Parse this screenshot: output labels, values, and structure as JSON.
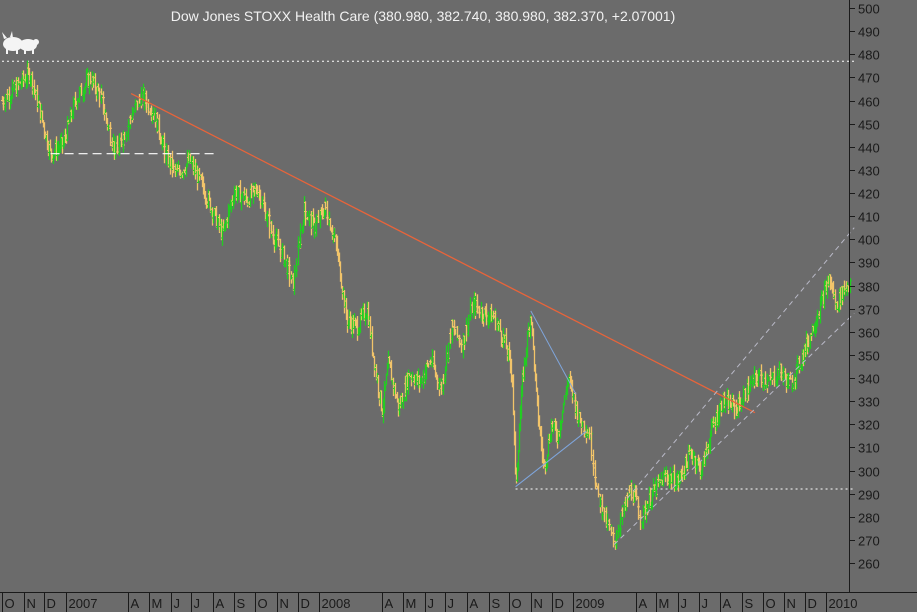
{
  "colors": {
    "background": "#6b6b6b",
    "up_bar": "#22cc22",
    "down_bar": "#f2c46a",
    "trendline": "#e8643a",
    "channel": "#b9b9c7",
    "triangle": "#7fa6dd",
    "reference": "#ffffff",
    "axis_text": "#1a1a1a",
    "title_text": "#f2f2f2"
  },
  "icon": "bull-and-bear-logo-icon",
  "chart_data": {
    "type": "ohlc",
    "title": "Dow Jones STOXX Health Care (380.980, 382.740, 380.980, 382.370, +2.07001)",
    "ylim": [
      255,
      503
    ],
    "y_ticks": [
      260,
      270,
      280,
      290,
      300,
      310,
      320,
      330,
      340,
      350,
      360,
      370,
      380,
      390,
      400,
      410,
      420,
      430,
      440,
      450,
      460,
      470,
      480,
      490,
      500
    ],
    "x_axis": {
      "start": "2006-10",
      "end": "2010-02",
      "ticks": [
        {
          "label": "O",
          "date": "2006-10"
        },
        {
          "label": "N",
          "date": "2006-11"
        },
        {
          "label": "D",
          "date": "2006-12"
        },
        {
          "label": "2007",
          "date": "2007-01"
        },
        {
          "label": "A",
          "date": "2007-04"
        },
        {
          "label": "M",
          "date": "2007-05"
        },
        {
          "label": "J",
          "date": "2007-06"
        },
        {
          "label": "J",
          "date": "2007-07"
        },
        {
          "label": "A",
          "date": "2007-08"
        },
        {
          "label": "S",
          "date": "2007-09"
        },
        {
          "label": "O",
          "date": "2007-10"
        },
        {
          "label": "N",
          "date": "2007-11"
        },
        {
          "label": "D",
          "date": "2007-12"
        },
        {
          "label": "2008",
          "date": "2008-01"
        },
        {
          "label": "A",
          "date": "2008-04"
        },
        {
          "label": "M",
          "date": "2008-05"
        },
        {
          "label": "J",
          "date": "2008-06"
        },
        {
          "label": "J",
          "date": "2008-07"
        },
        {
          "label": "A",
          "date": "2008-08"
        },
        {
          "label": "S",
          "date": "2008-09"
        },
        {
          "label": "O",
          "date": "2008-10"
        },
        {
          "label": "N",
          "date": "2008-11"
        },
        {
          "label": "D",
          "date": "2008-12"
        },
        {
          "label": "2009",
          "date": "2009-01"
        },
        {
          "label": "A",
          "date": "2009-04"
        },
        {
          "label": "M",
          "date": "2009-05"
        },
        {
          "label": "J",
          "date": "2009-06"
        },
        {
          "label": "J",
          "date": "2009-07"
        },
        {
          "label": "A",
          "date": "2009-08"
        },
        {
          "label": "S",
          "date": "2009-09"
        },
        {
          "label": "O",
          "date": "2009-10"
        },
        {
          "label": "N",
          "date": "2009-11"
        },
        {
          "label": "D",
          "date": "2009-12"
        },
        {
          "label": "2010",
          "date": "2010-01"
        }
      ]
    },
    "close_path": [
      [
        "2006-10-01",
        460
      ],
      [
        "2006-10-20",
        465
      ],
      [
        "2006-11-10",
        472
      ],
      [
        "2006-11-25",
        455
      ],
      [
        "2006-12-10",
        437
      ],
      [
        "2006-12-28",
        441
      ],
      [
        "2007-01-15",
        460
      ],
      [
        "2007-02-05",
        470
      ],
      [
        "2007-02-20",
        462
      ],
      [
        "2007-03-05",
        447
      ],
      [
        "2007-03-15",
        437
      ],
      [
        "2007-04-05",
        453
      ],
      [
        "2007-04-20",
        462
      ],
      [
        "2007-05-08",
        455
      ],
      [
        "2007-05-25",
        436
      ],
      [
        "2007-06-10",
        428
      ],
      [
        "2007-06-28",
        434
      ],
      [
        "2007-07-15",
        424
      ],
      [
        "2007-08-01",
        412
      ],
      [
        "2007-08-15",
        402
      ],
      [
        "2007-09-01",
        421
      ],
      [
        "2007-09-20",
        417
      ],
      [
        "2007-10-05",
        422
      ],
      [
        "2007-10-25",
        403
      ],
      [
        "2007-11-10",
        393
      ],
      [
        "2007-11-25",
        380
      ],
      [
        "2007-12-10",
        413
      ],
      [
        "2007-12-25",
        405
      ],
      [
        "2008-01-10",
        414
      ],
      [
        "2008-01-25",
        398
      ],
      [
        "2008-02-10",
        365
      ],
      [
        "2008-02-25",
        362
      ],
      [
        "2008-03-10",
        370
      ],
      [
        "2008-03-20",
        348
      ],
      [
        "2008-04-01",
        326
      ],
      [
        "2008-04-10",
        346
      ],
      [
        "2008-04-25",
        327
      ],
      [
        "2008-05-10",
        342
      ],
      [
        "2008-05-25",
        338
      ],
      [
        "2008-06-10",
        348
      ],
      [
        "2008-06-25",
        335
      ],
      [
        "2008-07-10",
        362
      ],
      [
        "2008-07-25",
        355
      ],
      [
        "2008-08-10",
        372
      ],
      [
        "2008-08-25",
        368
      ],
      [
        "2008-09-10",
        366
      ],
      [
        "2008-09-25",
        355
      ],
      [
        "2008-10-05",
        342
      ],
      [
        "2008-10-10",
        293
      ],
      [
        "2008-10-20",
        340
      ],
      [
        "2008-11-01",
        369
      ],
      [
        "2008-11-10",
        328
      ],
      [
        "2008-11-20",
        301
      ],
      [
        "2008-12-01",
        320
      ],
      [
        "2008-12-10",
        315
      ],
      [
        "2008-12-25",
        340
      ],
      [
        "2009-01-10",
        322
      ],
      [
        "2009-01-25",
        316
      ],
      [
        "2009-02-05",
        290
      ],
      [
        "2009-02-20",
        276
      ],
      [
        "2009-03-01",
        269
      ],
      [
        "2009-03-12",
        280
      ],
      [
        "2009-03-25",
        292
      ],
      [
        "2009-04-10",
        280
      ],
      [
        "2009-04-25",
        290
      ],
      [
        "2009-05-15",
        298
      ],
      [
        "2009-06-01",
        295
      ],
      [
        "2009-06-20",
        308
      ],
      [
        "2009-07-05",
        300
      ],
      [
        "2009-07-20",
        318
      ],
      [
        "2009-08-05",
        330
      ],
      [
        "2009-08-25",
        327
      ],
      [
        "2009-09-10",
        335
      ],
      [
        "2009-09-25",
        341
      ],
      [
        "2009-10-10",
        338
      ],
      [
        "2009-10-25",
        343
      ],
      [
        "2009-11-10",
        337
      ],
      [
        "2009-11-25",
        348
      ],
      [
        "2009-12-10",
        360
      ],
      [
        "2009-12-25",
        373
      ],
      [
        "2010-01-05",
        383
      ],
      [
        "2010-01-15",
        371
      ],
      [
        "2010-01-25",
        378
      ],
      [
        "2010-02-05",
        382
      ]
    ],
    "lines": [
      {
        "name": "resistance-trendline",
        "kind": "trend",
        "from": [
          "2007-04-05",
          463
        ],
        "to": [
          "2009-09-20",
          325
        ]
      },
      {
        "name": "channel-upper",
        "kind": "channel",
        "from": [
          "2009-03-20",
          288
        ],
        "to": [
          "2010-02-10",
          405
        ]
      },
      {
        "name": "channel-lower",
        "kind": "channel",
        "from": [
          "2009-03-01",
          268
        ],
        "to": [
          "2010-02-10",
          368
        ]
      },
      {
        "name": "triangle-upper",
        "kind": "triangle",
        "from": [
          "2008-11-01",
          369
        ],
        "to": [
          "2009-01-05",
          333
        ]
      },
      {
        "name": "triangle-lower",
        "kind": "triangle",
        "from": [
          "2008-10-10",
          293
        ],
        "to": [
          "2009-01-20",
          317
        ]
      },
      {
        "name": "support-2007",
        "kind": "dashed-ref",
        "from": [
          "2006-12-10",
          437
        ],
        "to": [
          "2007-08-05",
          437
        ]
      },
      {
        "name": "top-reference",
        "kind": "dotted-ref",
        "from": [
          "2006-10-01",
          477
        ],
        "to": [
          "2010-02-10",
          477
        ]
      },
      {
        "name": "low-reference",
        "kind": "dotted-ref",
        "from": [
          "2008-10-10",
          292
        ],
        "to": [
          "2010-02-10",
          292
        ]
      }
    ]
  }
}
